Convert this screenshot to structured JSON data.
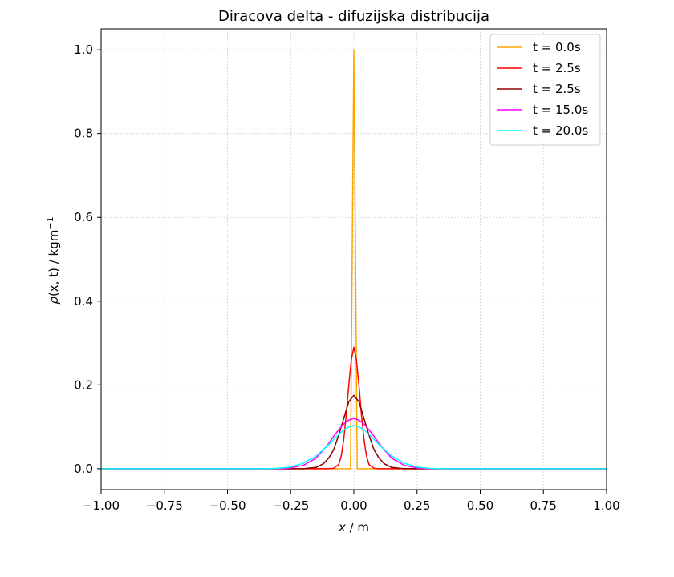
{
  "chart_data": {
    "type": "line",
    "title": "Diracova delta - difuzijska distribucija",
    "xlabel_var": "x",
    "xlabel_unit": " / m",
    "ylabel_var": "ρ",
    "ylabel_args": "(x, t)",
    "ylabel_unit": " / kgm",
    "ylabel_exp": "−1",
    "xlim": [
      -1.0,
      1.0
    ],
    "ylim": [
      -0.05,
      1.05
    ],
    "xticks": [
      -1.0,
      -0.75,
      -0.5,
      -0.25,
      0.0,
      0.25,
      0.5,
      0.75,
      1.0
    ],
    "xtick_labels": [
      "−1.00",
      "−0.75",
      "−0.50",
      "−0.25",
      "0.00",
      "0.25",
      "0.50",
      "0.75",
      "1.00"
    ],
    "yticks": [
      0.0,
      0.2,
      0.4,
      0.6,
      0.8,
      1.0
    ],
    "ytick_labels": [
      "0.0",
      "0.2",
      "0.4",
      "0.6",
      "0.8",
      "1.0"
    ],
    "grid": true,
    "legend_position": "top-right",
    "series": [
      {
        "name": "t = 0.0s",
        "color": "#ffa500",
        "x": [
          -1.0,
          -0.02,
          -0.0133,
          0.0,
          0.0133,
          0.02,
          1.0
        ],
        "y": [
          0.0,
          0.0,
          0.0,
          1.0,
          0.0,
          0.0,
          0.0
        ]
      },
      {
        "name": "t = 2.5s",
        "color": "#ff0000",
        "x": [
          -1.0,
          -0.2,
          -0.15,
          -0.12,
          -0.1,
          -0.08,
          -0.06,
          -0.05,
          -0.04,
          -0.03,
          -0.02,
          -0.01,
          0.0,
          0.01,
          0.02,
          0.03,
          0.04,
          0.05,
          0.06,
          0.08,
          0.1,
          0.12,
          0.15,
          0.2,
          1.0
        ],
        "y": [
          0.0,
          0.0,
          0.0,
          0.0,
          0.0,
          0.001,
          0.01,
          0.03,
          0.07,
          0.13,
          0.2,
          0.26,
          0.29,
          0.26,
          0.2,
          0.13,
          0.07,
          0.03,
          0.01,
          0.001,
          0.0,
          0.0,
          0.0,
          0.0,
          0.0
        ]
      },
      {
        "name": "t = 2.5s",
        "color": "#8b0000",
        "x": [
          -1.0,
          -0.25,
          -0.2,
          -0.15,
          -0.12,
          -0.1,
          -0.08,
          -0.06,
          -0.04,
          -0.02,
          0.0,
          0.02,
          0.04,
          0.06,
          0.08,
          0.1,
          0.12,
          0.15,
          0.2,
          0.25,
          1.0
        ],
        "y": [
          0.0,
          0.0,
          0.0,
          0.003,
          0.012,
          0.025,
          0.045,
          0.08,
          0.12,
          0.16,
          0.175,
          0.16,
          0.12,
          0.08,
          0.045,
          0.025,
          0.012,
          0.003,
          0.0,
          0.0,
          0.0
        ]
      },
      {
        "name": "t = 15.0s",
        "color": "#ff00ff",
        "x": [
          -1.0,
          -0.3,
          -0.25,
          -0.2,
          -0.15,
          -0.12,
          -0.1,
          -0.08,
          -0.06,
          -0.04,
          -0.02,
          0.0,
          0.02,
          0.04,
          0.06,
          0.08,
          0.1,
          0.12,
          0.15,
          0.2,
          0.25,
          0.3,
          1.0
        ],
        "y": [
          0.0,
          0.0,
          0.002,
          0.008,
          0.025,
          0.045,
          0.06,
          0.077,
          0.093,
          0.107,
          0.116,
          0.12,
          0.116,
          0.107,
          0.093,
          0.077,
          0.06,
          0.045,
          0.025,
          0.008,
          0.002,
          0.0,
          0.0
        ]
      },
      {
        "name": "t = 20.0s",
        "color": "#00ffff",
        "x": [
          -1.0,
          -0.35,
          -0.3,
          -0.25,
          -0.2,
          -0.15,
          -0.12,
          -0.1,
          -0.08,
          -0.06,
          -0.04,
          -0.02,
          0.0,
          0.02,
          0.04,
          0.06,
          0.08,
          0.1,
          0.12,
          0.15,
          0.2,
          0.25,
          0.3,
          0.35,
          1.0
        ],
        "y": [
          0.0,
          0.0,
          0.001,
          0.004,
          0.013,
          0.03,
          0.046,
          0.057,
          0.07,
          0.082,
          0.093,
          0.1,
          0.103,
          0.1,
          0.093,
          0.082,
          0.07,
          0.057,
          0.046,
          0.03,
          0.013,
          0.004,
          0.001,
          0.0,
          0.0
        ]
      }
    ]
  }
}
